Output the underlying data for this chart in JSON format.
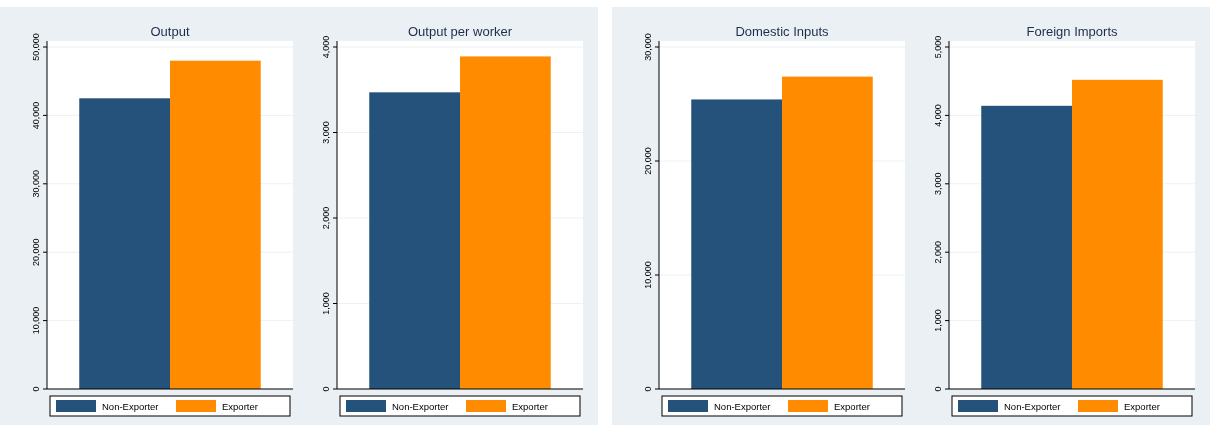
{
  "chart_data": [
    {
      "type": "bar",
      "title": "Output",
      "categories": [
        null
      ],
      "series": [
        {
          "name": "Non-Exporter",
          "color": "#24527a",
          "values": [
            42500
          ]
        },
        {
          "name": "Exporter",
          "color": "#ff8c00",
          "values": [
            48000
          ]
        }
      ],
      "ylim": [
        0,
        50000
      ],
      "yticks": [
        {
          "value": 0,
          "label": "0"
        },
        {
          "value": 10000,
          "label": "10,000"
        },
        {
          "value": 20000,
          "label": "20,000"
        },
        {
          "value": 30000,
          "label": "30,000"
        },
        {
          "value": 40000,
          "label": "40,000"
        },
        {
          "value": 50000,
          "label": "50,000"
        }
      ],
      "grid": "y",
      "legend": "bottom"
    },
    {
      "type": "bar",
      "title": "Output per worker",
      "categories": [
        null
      ],
      "series": [
        {
          "name": "Non-Exporter",
          "color": "#24527a",
          "values": [
            3470
          ]
        },
        {
          "name": "Exporter",
          "color": "#ff8c00",
          "values": [
            3890
          ]
        }
      ],
      "ylim": [
        0,
        4000
      ],
      "yticks": [
        {
          "value": 0,
          "label": "0"
        },
        {
          "value": 1000,
          "label": "1,000"
        },
        {
          "value": 2000,
          "label": "2,000"
        },
        {
          "value": 3000,
          "label": "3,000"
        },
        {
          "value": 4000,
          "label": "4,000"
        }
      ],
      "grid": "y",
      "legend": "bottom"
    },
    {
      "type": "bar",
      "title": "Domestic Inputs",
      "categories": [
        null
      ],
      "series": [
        {
          "name": "Non-Exporter",
          "color": "#24527a",
          "values": [
            25400
          ]
        },
        {
          "name": "Exporter",
          "color": "#ff8c00",
          "values": [
            27400
          ]
        }
      ],
      "ylim": [
        0,
        30000
      ],
      "yticks": [
        {
          "value": 0,
          "label": "0"
        },
        {
          "value": 10000,
          "label": "10,000"
        },
        {
          "value": 20000,
          "label": "20,000"
        },
        {
          "value": 30000,
          "label": "30,000"
        }
      ],
      "grid": "y",
      "legend": "bottom"
    },
    {
      "type": "bar",
      "title": "Foreign Imports",
      "categories": [
        null
      ],
      "series": [
        {
          "name": "Non-Exporter",
          "color": "#24527a",
          "values": [
            4140
          ]
        },
        {
          "name": "Exporter",
          "color": "#ff8c00",
          "values": [
            4520
          ]
        }
      ],
      "ylim": [
        0,
        5000
      ],
      "yticks": [
        {
          "value": 0,
          "label": "0"
        },
        {
          "value": 1000,
          "label": "1,000"
        },
        {
          "value": 2000,
          "label": "2,000"
        },
        {
          "value": 3000,
          "label": "3,000"
        },
        {
          "value": 4000,
          "label": "4,000"
        },
        {
          "value": 5000,
          "label": "5,000"
        }
      ],
      "grid": "y",
      "legend": "bottom"
    }
  ]
}
